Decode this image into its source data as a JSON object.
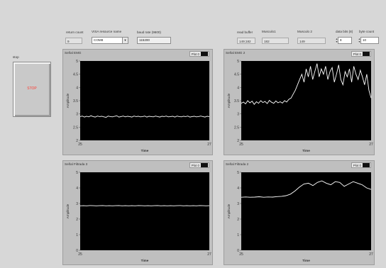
{
  "controls": {
    "return_count": {
      "label": "return count",
      "value": "9"
    },
    "visa": {
      "label": "VISA resource name",
      "value": "COM8"
    },
    "baud": {
      "label": "baud rate (9600)",
      "value": "115200"
    },
    "read_buffer": {
      "label": "read buffer",
      "value": "149;182"
    },
    "musculo1": {
      "label": "Musculo1",
      "value": "182"
    },
    "musculo2": {
      "label": "Musculo 2",
      "value": "149"
    },
    "data_bits": {
      "label": "data bits (8)",
      "value": "8"
    },
    "byte_count": {
      "label": "byte count",
      "value": "10"
    }
  },
  "stop": {
    "label": "stop",
    "button_text": "STOP",
    "text_color": "#ff3b30"
  },
  "chart_data": [
    {
      "type": "line",
      "title": "Señal EMG",
      "legend": "Plot 0",
      "xlabel": "Time",
      "ylabel": "Amplitude",
      "xlim": [
        25,
        27
      ],
      "ylim": [
        2,
        5
      ],
      "yticks": [
        "5",
        "4.5",
        "4",
        "3.5",
        "3",
        "2.5",
        "2"
      ],
      "xticks": [
        "25",
        "27"
      ],
      "series": [
        {
          "values": [
            2.9,
            2.92,
            2.88,
            2.91,
            2.89,
            2.93,
            2.9,
            2.88,
            2.92,
            2.9,
            2.91,
            2.89,
            2.87,
            2.92,
            2.9,
            2.89,
            2.91,
            2.93,
            2.88,
            2.9,
            2.92,
            2.89,
            2.91,
            2.9,
            2.88,
            2.92,
            2.9,
            2.91,
            2.89,
            2.9,
            2.92,
            2.88,
            2.91,
            2.9,
            2.89,
            2.92,
            2.9,
            2.88,
            2.91,
            2.9,
            2.92,
            2.89,
            2.9,
            2.91,
            2.88,
            2.92,
            2.9,
            2.89,
            2.91,
            2.9,
            2.92,
            2.88,
            2.9,
            2.91,
            2.89,
            2.9,
            2.92,
            2.9,
            2.88,
            2.91,
            2.9
          ]
        }
      ]
    },
    {
      "type": "line",
      "title": "Señal EMG 2",
      "legend": "Plot 0",
      "xlabel": "Time",
      "ylabel": "Amplitude",
      "xlim": [
        25,
        27
      ],
      "ylim": [
        2,
        5
      ],
      "yticks": [
        "5",
        "4.5",
        "4",
        "3.5",
        "3",
        "2.5",
        "2"
      ],
      "xticks": [
        "25",
        "27"
      ],
      "series": [
        {
          "values": [
            3.4,
            3.45,
            3.38,
            3.5,
            3.42,
            3.48,
            3.36,
            3.46,
            3.4,
            3.5,
            3.43,
            3.47,
            3.39,
            3.51,
            3.44,
            3.4,
            3.49,
            3.42,
            3.46,
            3.41,
            3.5,
            3.45,
            3.55,
            3.6,
            3.75,
            3.9,
            4.1,
            4.3,
            4.5,
            4.2,
            4.7,
            4.4,
            4.8,
            4.3,
            4.6,
            4.9,
            4.4,
            4.7,
            4.5,
            4.8,
            4.3,
            4.6,
            4.75,
            4.2,
            4.5,
            4.85,
            4.3,
            4.1,
            4.6,
            4.4,
            4.7,
            4.2,
            4.8,
            4.5,
            4.3,
            4.65,
            4.4,
            4.1,
            4.5,
            3.9,
            3.6
          ]
        }
      ]
    },
    {
      "type": "line",
      "title": "Señal Filtrada 3",
      "legend": "Plot 0",
      "xlabel": "Time",
      "ylabel": "Amplitude",
      "xlim": [
        25,
        27
      ],
      "ylim": [
        0,
        5
      ],
      "yticks": [
        "5",
        "4",
        "3",
        "2",
        "1",
        "0"
      ],
      "xticks": [
        "25",
        "27"
      ],
      "series": [
        {
          "values": [
            2.85,
            2.86,
            2.85,
            2.87,
            2.86,
            2.85,
            2.86,
            2.87,
            2.85,
            2.86,
            2.85,
            2.86,
            2.87,
            2.85,
            2.86,
            2.85,
            2.86,
            2.85,
            2.87,
            2.86,
            2.85,
            2.86,
            2.85,
            2.86,
            2.87,
            2.85,
            2.86,
            2.85,
            2.86,
            2.85,
            2.86,
            2.87,
            2.85,
            2.86,
            2.85,
            2.86,
            2.85,
            2.87,
            2.86,
            2.85,
            2.86
          ]
        }
      ]
    },
    {
      "type": "line",
      "title": "Señal Filtrada 2",
      "legend": "Plot 0",
      "xlabel": "Time",
      "ylabel": "Amplitude",
      "xlim": [
        25,
        27
      ],
      "ylim": [
        0,
        5
      ],
      "yticks": [
        "5",
        "4",
        "3",
        "2",
        "1",
        "0"
      ],
      "xticks": [
        "25",
        "27"
      ],
      "series": [
        {
          "values": [
            3.4,
            3.42,
            3.4,
            3.41,
            3.43,
            3.4,
            3.42,
            3.41,
            3.44,
            3.46,
            3.5,
            3.6,
            3.8,
            4.05,
            4.25,
            4.3,
            4.15,
            4.35,
            4.45,
            4.3,
            4.2,
            4.4,
            4.35,
            4.1,
            4.25,
            4.4,
            4.3,
            4.2,
            4.0,
            3.9
          ]
        }
      ]
    }
  ]
}
